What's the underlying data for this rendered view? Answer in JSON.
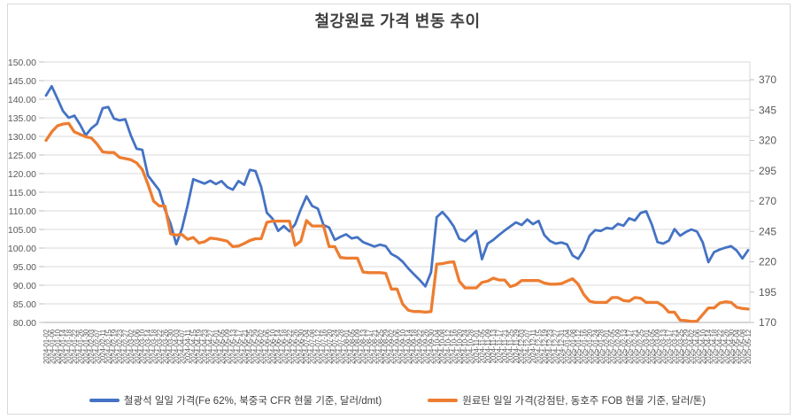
{
  "title": "철강원료 가격 변동 추이",
  "left_axis": {
    "min": 80,
    "max": 150,
    "step": 5,
    "labels": [
      "150.00",
      "145.00",
      "140.00",
      "135.00",
      "130.00",
      "125.00",
      "120.00",
      "115.00",
      "110.00",
      "105.00",
      "100.00",
      "95.00",
      "90.00",
      "85.00",
      "80.00"
    ]
  },
  "right_axis": {
    "min": 170,
    "max": 370,
    "step": 25,
    "labels": [
      "370",
      "345",
      "320",
      "295",
      "270",
      "245",
      "220",
      "195",
      "170"
    ]
  },
  "chart_data": {
    "type": "line",
    "title": "철강원료 가격 변동 추이",
    "grid": true,
    "legend_position": "bottom",
    "x_label_rotation": -90,
    "left_ylim": [
      80,
      150
    ],
    "right_ylim": [
      170,
      387
    ],
    "x": [
      "2024-01-02",
      "2024-01-06",
      "2024-01-10",
      "2024-01-14",
      "2024-01-18",
      "2024-01-22",
      "2024-01-26",
      "2024-01-30",
      "2024-02-03",
      "2024-02-07",
      "2024-02-11",
      "2024-02-15",
      "2024-02-19",
      "2024-02-23",
      "2024-02-27",
      "2024-03-02",
      "2024-03-06",
      "2024-03-10",
      "2024-03-14",
      "2024-03-18",
      "2024-03-22",
      "2024-03-26",
      "2024-03-30",
      "2024-04-03",
      "2024-04-07",
      "2024-04-11",
      "2024-04-15",
      "2024-04-19",
      "2024-04-23",
      "2024-04-27",
      "2024-05-01",
      "2024-05-05",
      "2024-05-09",
      "2024-05-13",
      "2024-05-17",
      "2024-05-21",
      "2024-05-25",
      "2024-05-29",
      "2024-06-02",
      "2024-06-06",
      "2024-06-10",
      "2024-06-14",
      "2024-06-18",
      "2024-06-22",
      "2024-06-26",
      "2024-06-30",
      "2024-07-04",
      "2024-07-08",
      "2024-07-12",
      "2024-07-16",
      "2024-07-20",
      "2024-07-24",
      "2024-07-28",
      "2024-08-01",
      "2024-08-05",
      "2024-08-09",
      "2024-08-13",
      "2024-08-17",
      "2024-08-21",
      "2024-08-25",
      "2024-08-29",
      "2024-09-02",
      "2024-09-06",
      "2024-09-10",
      "2024-09-14",
      "2024-09-18",
      "2024-09-22",
      "2024-09-26",
      "2024-09-30",
      "2024-10-04",
      "2024-10-08",
      "2024-10-12",
      "2024-10-16",
      "2024-10-20",
      "2024-10-24",
      "2024-10-28",
      "2024-11-01",
      "2024-11-05",
      "2024-11-09",
      "2024-11-13",
      "2024-11-17",
      "2024-11-21",
      "2024-11-25",
      "2024-11-29",
      "2024-12-03",
      "2024-12-07",
      "2024-12-11",
      "2024-12-15",
      "2024-12-19",
      "2024-12-23",
      "2024-12-27",
      "2024-12-31",
      "2025-01-04",
      "2025-01-08",
      "2025-01-12",
      "2025-01-16",
      "2025-01-20",
      "2025-01-24",
      "2025-01-28",
      "2025-02-01",
      "2025-02-05",
      "2025-02-09",
      "2025-02-13",
      "2025-02-17",
      "2025-02-21",
      "2025-02-25",
      "2025-03-01",
      "2025-03-05",
      "2025-03-09",
      "2025-03-13",
      "2025-03-17",
      "2025-03-21",
      "2025-03-25",
      "2025-03-29",
      "2025-04-02",
      "2025-04-06",
      "2025-04-10",
      "2025-04-14",
      "2025-04-18",
      "2025-04-22",
      "2025-04-26",
      "2025-04-30",
      "2025-05-04",
      "2025-05-08",
      "2025-05-12"
    ],
    "series": [
      {
        "key": "iron-ore",
        "name": "철광석 일일 가격(Fe 62%, 북중국 CFR 현물 기준, 달러/dmt)",
        "axis": "left",
        "color": "#4472C4",
        "values": [
          141.0,
          143.5,
          140.2,
          136.8,
          135.0,
          135.6,
          133.2,
          130.3,
          132.2,
          133.4,
          137.6,
          137.9,
          134.8,
          134.3,
          134.6,
          130.2,
          126.7,
          126.4,
          119.5,
          117.5,
          115.5,
          110.3,
          106.5,
          101.0,
          105.2,
          111.4,
          118.5,
          117.9,
          117.3,
          118.1,
          117.2,
          118.0,
          116.4,
          115.7,
          118.0,
          117.0,
          121.0,
          120.7,
          116.4,
          109.5,
          107.9,
          104.6,
          105.9,
          104.5,
          106.4,
          110.4,
          113.9,
          111.3,
          110.6,
          106.2,
          105.5,
          102.2,
          103.0,
          103.7,
          102.6,
          102.9,
          101.6,
          101.0,
          100.4,
          100.9,
          100.5,
          98.4,
          97.6,
          96.3,
          94.5,
          92.9,
          91.4,
          89.7,
          93.5,
          108.3,
          109.7,
          108.0,
          105.8,
          102.5,
          101.8,
          103.2,
          104.6,
          97.0,
          101.2,
          102.2,
          103.5,
          104.7,
          105.8,
          106.9,
          106.2,
          107.7,
          106.4,
          107.3,
          103.5,
          101.9,
          101.2,
          101.5,
          101.0,
          98.0,
          97.1,
          99.5,
          103.3,
          104.8,
          104.6,
          105.4,
          105.2,
          106.5,
          106.0,
          108.0,
          107.4,
          109.4,
          109.9,
          106.3,
          101.6,
          101.2,
          102.0,
          105.1,
          103.3,
          104.3,
          105.0,
          104.4,
          101.5,
          96.2,
          98.9,
          99.6,
          100.1,
          100.5,
          99.3,
          97.2,
          99.4
        ]
      },
      {
        "key": "coking-coal",
        "name": "원료탄 일일 가격(강점탄, 동호주 FOB 현물 기준, 달러/톤)",
        "axis": "right",
        "color": "#ED7D31",
        "values": [
          320,
          327,
          332,
          333.5,
          334,
          327,
          325,
          323,
          322,
          317,
          310.5,
          310,
          310,
          306,
          305,
          304,
          301.5,
          296,
          284,
          270,
          266,
          266,
          243,
          242,
          242.5,
          238.5,
          240,
          235.5,
          236.5,
          239.5,
          239,
          238,
          237,
          232.5,
          233,
          235,
          237.5,
          239,
          239,
          252.5,
          253.5,
          253.5,
          253.5,
          253.5,
          233.5,
          237,
          254,
          249.5,
          249.5,
          249.5,
          232.5,
          232.5,
          223.5,
          223,
          223,
          223,
          211.5,
          211,
          211,
          211,
          210.5,
          197.5,
          197.5,
          185,
          180,
          179,
          179,
          178.5,
          179,
          218,
          218.5,
          219.5,
          220,
          204,
          198.5,
          198.5,
          198.5,
          203,
          204,
          206.5,
          205,
          205,
          199.5,
          201,
          204.5,
          204.5,
          204.5,
          204.5,
          202.5,
          201.5,
          201.5,
          202,
          204,
          206,
          201.5,
          193,
          187.5,
          186.5,
          186.5,
          186.5,
          190.5,
          190.5,
          188,
          187.5,
          190.5,
          190,
          186.5,
          186.5,
          186.5,
          183.5,
          178.5,
          178.5,
          171.8,
          171.5,
          170.8,
          171,
          176.5,
          182,
          182,
          186,
          187,
          186.5,
          182.5,
          181.5,
          181
        ]
      }
    ]
  }
}
